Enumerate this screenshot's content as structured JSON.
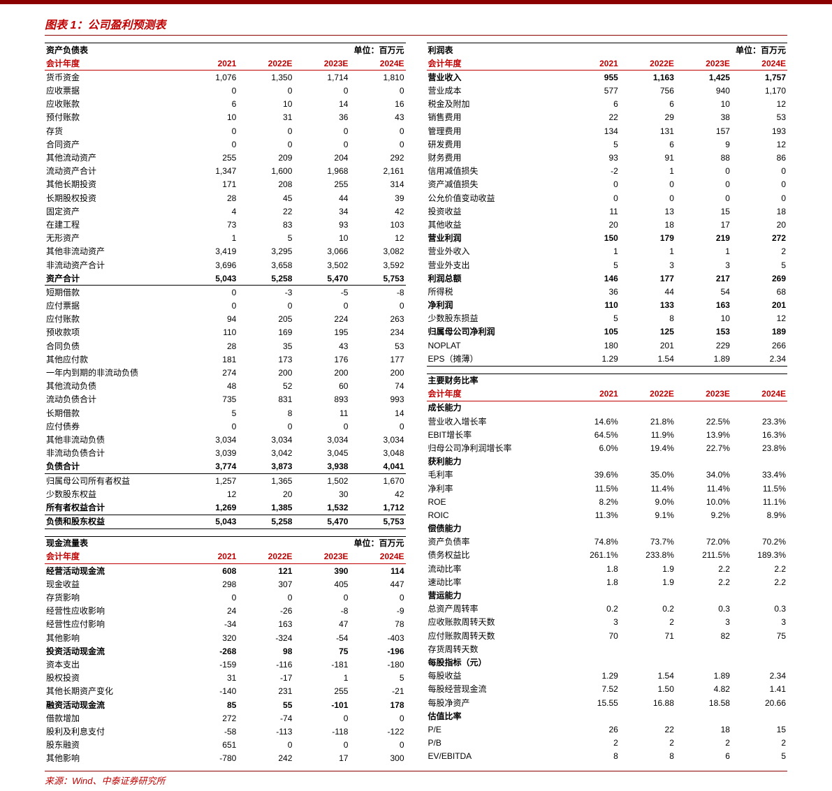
{
  "title": "图表 1：公司盈利预测表",
  "source": "来源：Wind、中泰证券研究所",
  "unit_label": "单位：百万元",
  "years": [
    "2021",
    "2022E",
    "2023E",
    "2024E"
  ],
  "year_header_label": "会计年度",
  "balance_sheet": {
    "heading": "资产负债表",
    "rows": [
      {
        "l": "货币资金",
        "v": [
          "1,076",
          "1,350",
          "1,714",
          "1,810"
        ]
      },
      {
        "l": "应收票据",
        "v": [
          "0",
          "0",
          "0",
          "0"
        ]
      },
      {
        "l": "应收账款",
        "v": [
          "6",
          "10",
          "14",
          "16"
        ]
      },
      {
        "l": "预付账款",
        "v": [
          "10",
          "31",
          "36",
          "43"
        ]
      },
      {
        "l": "存货",
        "v": [
          "0",
          "0",
          "0",
          "0"
        ]
      },
      {
        "l": "合同资产",
        "v": [
          "0",
          "0",
          "0",
          "0"
        ]
      },
      {
        "l": "其他流动资产",
        "v": [
          "255",
          "209",
          "204",
          "292"
        ]
      },
      {
        "l": "流动资产合计",
        "v": [
          "1,347",
          "1,600",
          "1,968",
          "2,161"
        ]
      },
      {
        "l": "其他长期投资",
        "v": [
          "171",
          "208",
          "255",
          "314"
        ]
      },
      {
        "l": "长期股权投资",
        "v": [
          "28",
          "45",
          "44",
          "39"
        ]
      },
      {
        "l": "固定资产",
        "v": [
          "4",
          "22",
          "34",
          "42"
        ]
      },
      {
        "l": "在建工程",
        "v": [
          "73",
          "83",
          "93",
          "103"
        ]
      },
      {
        "l": "无形资产",
        "v": [
          "1",
          "5",
          "10",
          "12"
        ]
      },
      {
        "l": "其他非流动资产",
        "v": [
          "3,419",
          "3,295",
          "3,066",
          "3,082"
        ]
      },
      {
        "l": "非流动资产合计",
        "v": [
          "3,696",
          "3,658",
          "3,502",
          "3,592"
        ]
      },
      {
        "l": "资产合计",
        "v": [
          "5,043",
          "5,258",
          "5,470",
          "5,753"
        ],
        "bold": true,
        "under": true
      },
      {
        "l": "短期借款",
        "v": [
          "0",
          "-3",
          "-5",
          "-8"
        ]
      },
      {
        "l": "应付票据",
        "v": [
          "0",
          "0",
          "0",
          "0"
        ]
      },
      {
        "l": "应付账款",
        "v": [
          "94",
          "205",
          "224",
          "263"
        ]
      },
      {
        "l": "预收款项",
        "v": [
          "110",
          "169",
          "195",
          "234"
        ]
      },
      {
        "l": "合同负债",
        "v": [
          "28",
          "35",
          "43",
          "53"
        ]
      },
      {
        "l": "其他应付款",
        "v": [
          "181",
          "173",
          "176",
          "177"
        ]
      },
      {
        "l": "一年内到期的非流动负债",
        "v": [
          "274",
          "200",
          "200",
          "200"
        ]
      },
      {
        "l": "其他流动负债",
        "v": [
          "48",
          "52",
          "60",
          "74"
        ]
      },
      {
        "l": "流动负债合计",
        "v": [
          "735",
          "831",
          "893",
          "993"
        ]
      },
      {
        "l": "长期借款",
        "v": [
          "5",
          "8",
          "11",
          "14"
        ]
      },
      {
        "l": "应付债券",
        "v": [
          "0",
          "0",
          "0",
          "0"
        ]
      },
      {
        "l": "其他非流动负债",
        "v": [
          "3,034",
          "3,034",
          "3,034",
          "3,034"
        ]
      },
      {
        "l": "非流动负债合计",
        "v": [
          "3,039",
          "3,042",
          "3,045",
          "3,048"
        ]
      },
      {
        "l": "负债合计",
        "v": [
          "3,774",
          "3,873",
          "3,938",
          "4,041"
        ],
        "bold": true,
        "under": true
      },
      {
        "l": "归属母公司所有者权益",
        "v": [
          "1,257",
          "1,365",
          "1,502",
          "1,670"
        ]
      },
      {
        "l": "少数股东权益",
        "v": [
          "12",
          "20",
          "30",
          "42"
        ]
      },
      {
        "l": "所有者权益合计",
        "v": [
          "1,269",
          "1,385",
          "1,532",
          "1,712"
        ],
        "bold": true,
        "under": true
      },
      {
        "l": "负债和股东权益",
        "v": [
          "5,043",
          "5,258",
          "5,470",
          "5,753"
        ],
        "bold": true,
        "under": true
      }
    ]
  },
  "cash_flow": {
    "heading": "现金流量表",
    "rows": [
      {
        "l": "经营活动现金流",
        "v": [
          "608",
          "121",
          "390",
          "114"
        ],
        "bold": true
      },
      {
        "l": "现金收益",
        "v": [
          "298",
          "307",
          "405",
          "447"
        ]
      },
      {
        "l": "存货影响",
        "v": [
          "0",
          "0",
          "0",
          "0"
        ]
      },
      {
        "l": "经营性应收影响",
        "v": [
          "24",
          "-26",
          "-8",
          "-9"
        ]
      },
      {
        "l": "经营性应付影响",
        "v": [
          "-34",
          "163",
          "47",
          "78"
        ]
      },
      {
        "l": "其他影响",
        "v": [
          "320",
          "-324",
          "-54",
          "-403"
        ]
      },
      {
        "l": "投资活动现金流",
        "v": [
          "-268",
          "98",
          "75",
          "-196"
        ],
        "bold": true
      },
      {
        "l": "资本支出",
        "v": [
          "-159",
          "-116",
          "-181",
          "-180"
        ]
      },
      {
        "l": "股权投资",
        "v": [
          "31",
          "-17",
          "1",
          "5"
        ]
      },
      {
        "l": "其他长期资产变化",
        "v": [
          "-140",
          "231",
          "255",
          "-21"
        ]
      },
      {
        "l": "融资活动现金流",
        "v": [
          "85",
          "55",
          "-101",
          "178"
        ],
        "bold": true
      },
      {
        "l": "借款增加",
        "v": [
          "272",
          "-74",
          "0",
          "0"
        ]
      },
      {
        "l": "股利及利息支付",
        "v": [
          "-58",
          "-113",
          "-118",
          "-122"
        ]
      },
      {
        "l": "股东融资",
        "v": [
          "651",
          "0",
          "0",
          "0"
        ]
      },
      {
        "l": "其他影响",
        "v": [
          "-780",
          "242",
          "17",
          "300"
        ]
      }
    ]
  },
  "income": {
    "heading": "利润表",
    "rows": [
      {
        "l": "营业收入",
        "v": [
          "955",
          "1,163",
          "1,425",
          "1,757"
        ],
        "bold": true
      },
      {
        "l": "营业成本",
        "v": [
          "577",
          "756",
          "940",
          "1,170"
        ]
      },
      {
        "l": "税金及附加",
        "v": [
          "6",
          "6",
          "10",
          "12"
        ]
      },
      {
        "l": "销售费用",
        "v": [
          "22",
          "29",
          "38",
          "53"
        ]
      },
      {
        "l": "管理费用",
        "v": [
          "134",
          "131",
          "157",
          "193"
        ]
      },
      {
        "l": "研发费用",
        "v": [
          "5",
          "6",
          "9",
          "12"
        ]
      },
      {
        "l": "财务费用",
        "v": [
          "93",
          "91",
          "88",
          "86"
        ]
      },
      {
        "l": "信用减值损失",
        "v": [
          "-2",
          "1",
          "0",
          "0"
        ]
      },
      {
        "l": "资产减值损失",
        "v": [
          "0",
          "0",
          "0",
          "0"
        ]
      },
      {
        "l": "公允价值变动收益",
        "v": [
          "0",
          "0",
          "0",
          "0"
        ]
      },
      {
        "l": "投资收益",
        "v": [
          "11",
          "13",
          "15",
          "18"
        ]
      },
      {
        "l": "其他收益",
        "v": [
          "20",
          "18",
          "17",
          "20"
        ]
      },
      {
        "l": "营业利润",
        "v": [
          "150",
          "179",
          "219",
          "272"
        ],
        "bold": true
      },
      {
        "l": "营业外收入",
        "v": [
          "1",
          "1",
          "1",
          "2"
        ]
      },
      {
        "l": "营业外支出",
        "v": [
          "5",
          "3",
          "3",
          "5"
        ]
      },
      {
        "l": "利润总额",
        "v": [
          "146",
          "177",
          "217",
          "269"
        ],
        "bold": true
      },
      {
        "l": "所得税",
        "v": [
          "36",
          "44",
          "54",
          "68"
        ]
      },
      {
        "l": "净利润",
        "v": [
          "110",
          "133",
          "163",
          "201"
        ],
        "bold": true
      },
      {
        "l": "少数股东损益",
        "v": [
          "5",
          "8",
          "10",
          "12"
        ]
      },
      {
        "l": "归属母公司净利润",
        "v": [
          "105",
          "125",
          "153",
          "189"
        ],
        "bold": true
      },
      {
        "l": "NOPLAT",
        "v": [
          "180",
          "201",
          "229",
          "266"
        ]
      },
      {
        "l": "EPS（摊薄）",
        "v": [
          "1.29",
          "1.54",
          "1.89",
          "2.34"
        ],
        "under": true
      }
    ]
  },
  "ratios": {
    "heading": "主要财务比率",
    "groups": [
      {
        "h": "成长能力",
        "rows": [
          {
            "l": "营业收入增长率",
            "v": [
              "14.6%",
              "21.8%",
              "22.5%",
              "23.3%"
            ]
          },
          {
            "l": "EBIT增长率",
            "v": [
              "64.5%",
              "11.9%",
              "13.9%",
              "16.3%"
            ]
          },
          {
            "l": "归母公司净利润增长率",
            "v": [
              "6.0%",
              "19.4%",
              "22.7%",
              "23.8%"
            ]
          }
        ]
      },
      {
        "h": "获利能力",
        "rows": [
          {
            "l": "毛利率",
            "v": [
              "39.6%",
              "35.0%",
              "34.0%",
              "33.4%"
            ]
          },
          {
            "l": "净利率",
            "v": [
              "11.5%",
              "11.4%",
              "11.4%",
              "11.5%"
            ]
          },
          {
            "l": "ROE",
            "v": [
              "8.2%",
              "9.0%",
              "10.0%",
              "11.1%"
            ]
          },
          {
            "l": "ROIC",
            "v": [
              "11.3%",
              "9.1%",
              "9.2%",
              "8.9%"
            ]
          }
        ]
      },
      {
        "h": "偿债能力",
        "rows": [
          {
            "l": "资产负债率",
            "v": [
              "74.8%",
              "73.7%",
              "72.0%",
              "70.2%"
            ]
          },
          {
            "l": "债务权益比",
            "v": [
              "261.1%",
              "233.8%",
              "211.5%",
              "189.3%"
            ]
          },
          {
            "l": "流动比率",
            "v": [
              "1.8",
              "1.9",
              "2.2",
              "2.2"
            ]
          },
          {
            "l": "速动比率",
            "v": [
              "1.8",
              "1.9",
              "2.2",
              "2.2"
            ]
          }
        ]
      },
      {
        "h": "营运能力",
        "rows": [
          {
            "l": "总资产周转率",
            "v": [
              "0.2",
              "0.2",
              "0.3",
              "0.3"
            ]
          },
          {
            "l": "应收账款周转天数",
            "v": [
              "3",
              "2",
              "3",
              "3"
            ]
          },
          {
            "l": "应付账款周转天数",
            "v": [
              "70",
              "71",
              "82",
              "75"
            ]
          },
          {
            "l": "存货周转天数",
            "v": [
              "",
              "",
              "",
              ""
            ]
          }
        ]
      },
      {
        "h": "每股指标（元）",
        "rows": [
          {
            "l": "每股收益",
            "v": [
              "1.29",
              "1.54",
              "1.89",
              "2.34"
            ]
          },
          {
            "l": "每股经营现金流",
            "v": [
              "7.52",
              "1.50",
              "4.82",
              "1.41"
            ]
          },
          {
            "l": "每股净资产",
            "v": [
              "15.55",
              "16.88",
              "18.58",
              "20.66"
            ]
          }
        ]
      },
      {
        "h": "估值比率",
        "rows": [
          {
            "l": "P/E",
            "v": [
              "26",
              "22",
              "18",
              "15"
            ]
          },
          {
            "l": "P/B",
            "v": [
              "2",
              "2",
              "2",
              "2"
            ]
          },
          {
            "l": "EV/EBITDA",
            "v": [
              "8",
              "8",
              "6",
              "5"
            ]
          }
        ]
      }
    ]
  }
}
